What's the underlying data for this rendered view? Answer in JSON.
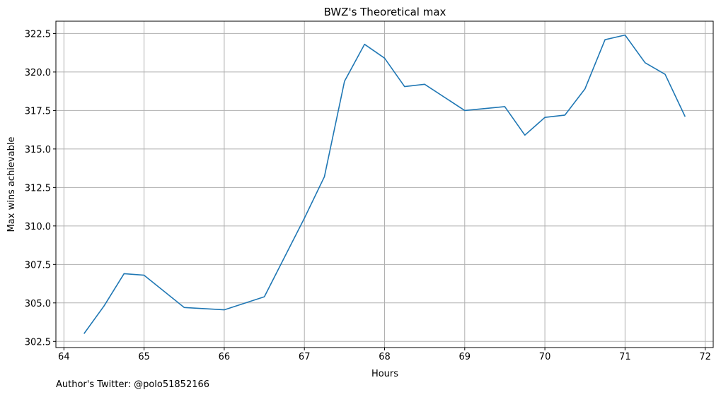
{
  "chart_data": {
    "type": "line",
    "title": "BWZ's Theoretical max",
    "xlabel": "Hours",
    "ylabel": "Max wins achievable",
    "xlim": [
      63.9,
      72.1
    ],
    "ylim": [
      302.1,
      323.3
    ],
    "xticks": [
      64,
      65,
      66,
      67,
      68,
      69,
      70,
      71,
      72
    ],
    "yticks": [
      302.5,
      305.0,
      307.5,
      310.0,
      312.5,
      315.0,
      317.5,
      320.0,
      322.5
    ],
    "xtick_labels": [
      "64",
      "65",
      "66",
      "67",
      "68",
      "69",
      "70",
      "71",
      "72"
    ],
    "ytick_labels": [
      "302.5",
      "305.0",
      "307.5",
      "310.0",
      "312.5",
      "315.0",
      "317.5",
      "320.0",
      "322.5"
    ],
    "grid": true,
    "line_color": "#1f77b4",
    "series": [
      {
        "x": [
          64.25,
          64.5,
          64.75,
          65.0,
          65.5,
          66.0,
          66.5,
          67.0,
          67.25,
          67.5,
          67.75,
          68.0,
          68.25,
          68.5,
          69.0,
          69.5,
          69.75,
          70.0,
          70.25,
          70.5,
          70.75,
          71.0,
          71.25,
          71.5,
          71.75
        ],
        "y": [
          303.0,
          304.8,
          306.9,
          306.8,
          304.7,
          304.55,
          305.4,
          310.5,
          313.2,
          319.4,
          321.8,
          320.9,
          319.05,
          319.2,
          317.5,
          317.75,
          315.9,
          317.05,
          317.2,
          318.9,
          322.1,
          322.4,
          320.6,
          319.85,
          317.1
        ]
      }
    ]
  },
  "footer": {
    "author_text": "Author's Twitter: @polo51852166"
  }
}
